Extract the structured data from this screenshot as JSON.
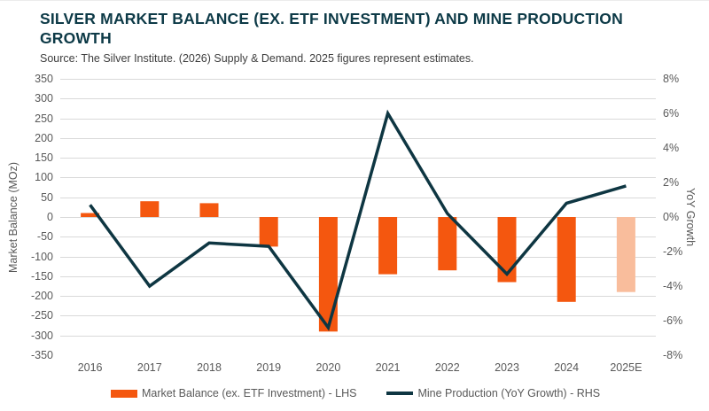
{
  "header": {
    "title": "SILVER MARKET BALANCE (EX. ETF INVESTMENT) AND MINE PRODUCTION GROWTH",
    "source": "Source: The Silver Institute. (2026) Supply & Demand. 2025 figures represent estimates."
  },
  "chart_data": {
    "type": "bar",
    "subtype": "combo-bar-line-dual-axis",
    "title": "SILVER MARKET BALANCE (EX. ETF INVESTMENT) AND MINE PRODUCTION GROWTH",
    "categories": [
      "2016",
      "2017",
      "2018",
      "2019",
      "2020",
      "2021",
      "2022",
      "2023",
      "2024",
      "2025E"
    ],
    "series": [
      {
        "name": "Market Balance (ex. ETF Investment) - LHS",
        "type": "bar",
        "axis": "left",
        "unit": "MOz",
        "values": [
          10,
          40,
          35,
          -75,
          -290,
          -145,
          -135,
          -165,
          -215,
          -190
        ]
      },
      {
        "name": "Mine Production (YoY Growth) - RHS",
        "type": "line",
        "axis": "right",
        "unit": "%",
        "values": [
          0.7,
          -4.0,
          -1.5,
          -1.7,
          -6.4,
          6.0,
          0.2,
          -3.3,
          0.8,
          1.8
        ]
      }
    ],
    "left_axis": {
      "label": "Market Balance (MOz)",
      "max": 350,
      "min": -350,
      "step": 50,
      "tick_labels": [
        "350",
        "300",
        "250",
        "200",
        "150",
        "100",
        "50",
        "0",
        "-50",
        "-100",
        "-150",
        "-200",
        "-250",
        "-300",
        "-350"
      ]
    },
    "right_axis": {
      "label": "YoY Growth",
      "max": 8,
      "min": -8,
      "step": 2,
      "tick_labels": [
        "8%",
        "6%",
        "4%",
        "2%",
        "0%",
        "-2%",
        "-4%",
        "-6%",
        "-8%"
      ]
    },
    "estimate_category": "2025E",
    "grid": true,
    "legend_position": "bottom",
    "colors": {
      "bar": "#F4570F",
      "bar_estimate": "#F9BD9C",
      "line": "#0E3642",
      "grid": "#D9D9D9",
      "tick_text": "#595959",
      "title_text": "#0D3A47"
    }
  },
  "legend": {
    "items": [
      {
        "label": "Market Balance (ex. ETF Investment) - LHS",
        "swatch": "bar"
      },
      {
        "label": "Mine Production (YoY Growth) - RHS",
        "swatch": "line"
      }
    ]
  }
}
